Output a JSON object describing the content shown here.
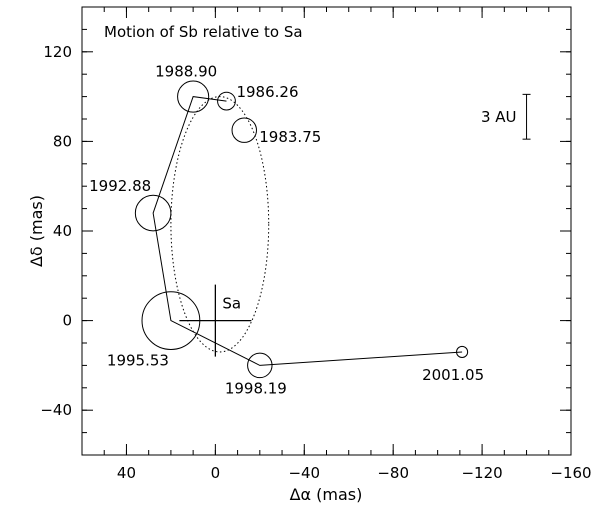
{
  "chart_data": {
    "type": "scatter",
    "title": "Motion of Sb relative to Sa",
    "xlabel": "Δα (mas)",
    "ylabel": "Δδ (mas)",
    "xlim": [
      60,
      -160
    ],
    "ylim": [
      -60,
      140
    ],
    "x_ticks": [
      40,
      0,
      -40,
      -80,
      -120,
      -160
    ],
    "y_ticks": [
      -40,
      0,
      40,
      80,
      120
    ],
    "x_tick_labels": [
      "40",
      "0",
      "−40",
      "−80",
      "−120",
      "−160"
    ],
    "y_tick_labels": [
      "−40",
      "0",
      "40",
      "80",
      "120"
    ],
    "x_minor_step": 10,
    "y_minor_step": 10,
    "grid": false,
    "points": [
      {
        "label": "1983.75",
        "x": -13,
        "y": 85,
        "radius": 5.5
      },
      {
        "label": "1986.26",
        "x": -5,
        "y": 98,
        "radius": 4
      },
      {
        "label": "1988.90",
        "x": 10,
        "y": 100,
        "radius": 7
      },
      {
        "label": "1992.88",
        "x": 28,
        "y": 48,
        "radius": 8
      },
      {
        "label": "1995.53",
        "x": 20,
        "y": 0,
        "radius": 13
      },
      {
        "label": "1998.19",
        "x": -20,
        "y": -20,
        "radius": 5.5
      },
      {
        "label": "2001.05",
        "x": -111,
        "y": -14,
        "radius": 2.5
      }
    ],
    "path_order": [
      "1986.26",
      "1988.90",
      "1992.88",
      "1995.53",
      "1998.19",
      "2001.05"
    ],
    "primary": {
      "label": "Sa",
      "x": 0,
      "y": 0
    },
    "orbit_ellipse": {
      "cx": -2,
      "cy": 43,
      "rx": 22,
      "ry": 57
    },
    "scale_bar": {
      "label": "3 AU",
      "x": -140,
      "y_from": 81,
      "y_to": 101
    }
  }
}
